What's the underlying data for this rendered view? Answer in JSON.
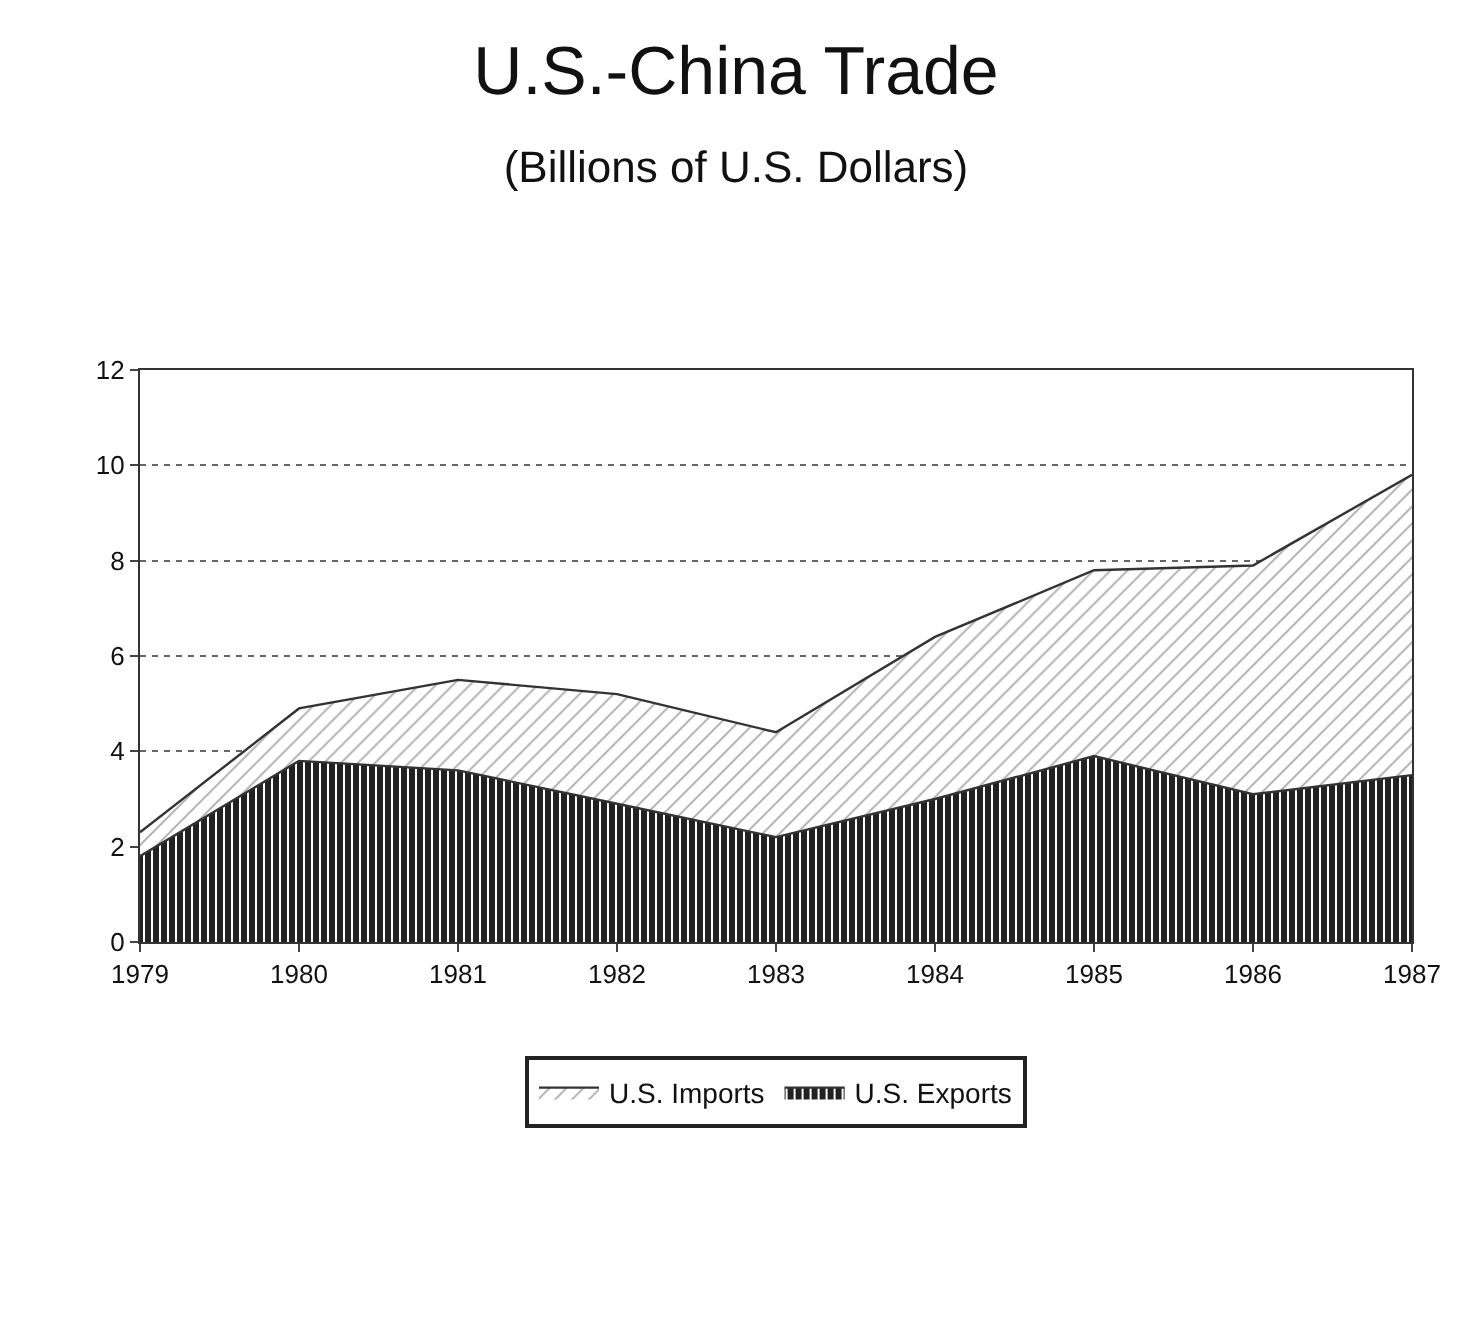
{
  "chart_data": {
    "type": "area",
    "title": "U.S.-China Trade",
    "subtitle": "(Billions of U.S. Dollars)",
    "x": [
      1979,
      1980,
      1981,
      1982,
      1983,
      1984,
      1985,
      1986,
      1987
    ],
    "stacked": true,
    "series": [
      {
        "name": "U.S. Exports",
        "color": "#222222",
        "values": [
          1.8,
          3.8,
          3.6,
          2.9,
          2.2,
          3.0,
          3.9,
          3.1,
          3.5
        ]
      },
      {
        "name": "U.S. Imports",
        "color": "#555555",
        "values": [
          0.5,
          1.1,
          1.9,
          2.3,
          2.2,
          3.4,
          3.9,
          4.8,
          6.3
        ]
      }
    ],
    "xlim": [
      1979,
      1987
    ],
    "xticks": [
      1979,
      1980,
      1981,
      1982,
      1983,
      1984,
      1985,
      1986,
      1987
    ],
    "ylim": [
      0,
      12
    ],
    "yticks": [
      0,
      2,
      4,
      6,
      8,
      10,
      12
    ],
    "grid": "y",
    "legend": "bottom"
  }
}
